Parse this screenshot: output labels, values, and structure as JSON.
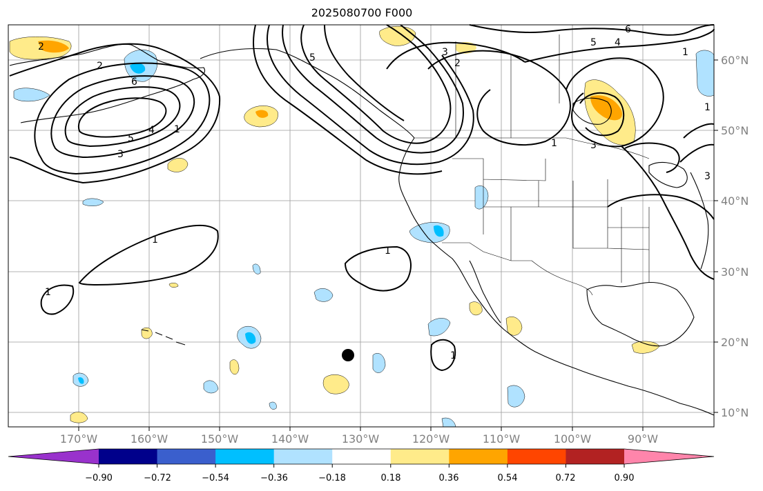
{
  "title": "2025080700 F000",
  "map": {
    "lon_ticks": [
      "170°W",
      "160°W",
      "150°W",
      "140°W",
      "130°W",
      "120°W",
      "110°W",
      "100°W",
      "90°W"
    ],
    "lat_ticks": [
      "60°N",
      "50°N",
      "40°N",
      "30°N",
      "20°N",
      "10°N"
    ],
    "contour_labels": [
      "2",
      "2",
      "6",
      "5",
      "3",
      "4",
      "1",
      "3",
      "1",
      "1",
      "5",
      "3",
      "2",
      "6",
      "5",
      "4",
      "1",
      "1",
      "3",
      "1",
      "1",
      "1"
    ],
    "grid_color": "#9a9a9a",
    "land_color": "#000000"
  },
  "colorbar": {
    "colors": [
      "#9932cc",
      "#00008b",
      "#3a5fcd",
      "#00bfff",
      "#b0e2ff",
      "#ffffff",
      "#ffeb8a",
      "#ffa500",
      "#ff4500",
      "#b22222",
      "#ff85ab"
    ],
    "labels": [
      "−0.90",
      "−0.72",
      "−0.54",
      "−0.36",
      "−0.18",
      "0.18",
      "0.36",
      "0.54",
      "0.72",
      "0.90"
    ]
  }
}
